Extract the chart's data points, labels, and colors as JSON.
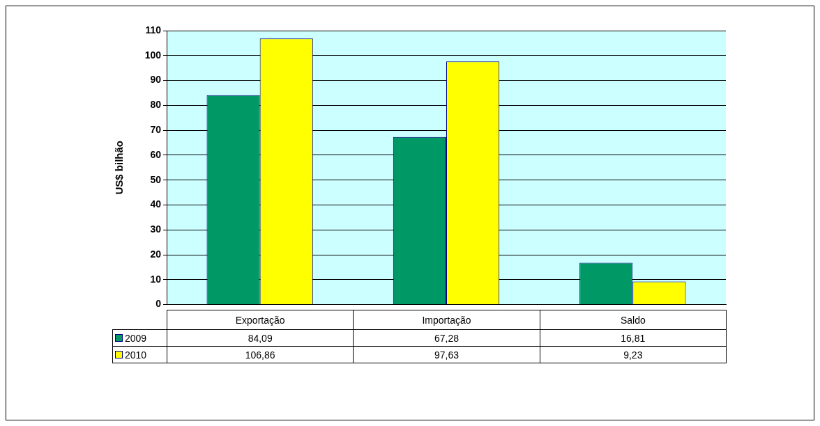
{
  "chart_data": {
    "type": "bar",
    "ylabel": "US$ bilhão",
    "categories": [
      "Exportação",
      "Importação",
      "Saldo"
    ],
    "series": [
      {
        "name": "2009",
        "color": "#009966",
        "values": [
          84.09,
          67.28,
          16.81
        ],
        "value_labels": [
          "84,09",
          "67,28",
          "16,81"
        ]
      },
      {
        "name": "2010",
        "color": "#ffff00",
        "values": [
          106.86,
          97.63,
          9.23
        ],
        "value_labels": [
          "106,86",
          "97,63",
          "9,23"
        ]
      }
    ],
    "ylim": [
      0,
      110
    ],
    "yticks": [
      0,
      10,
      20,
      30,
      40,
      50,
      60,
      70,
      80,
      90,
      100,
      110
    ],
    "grid": "y",
    "legend": "bottom left"
  }
}
